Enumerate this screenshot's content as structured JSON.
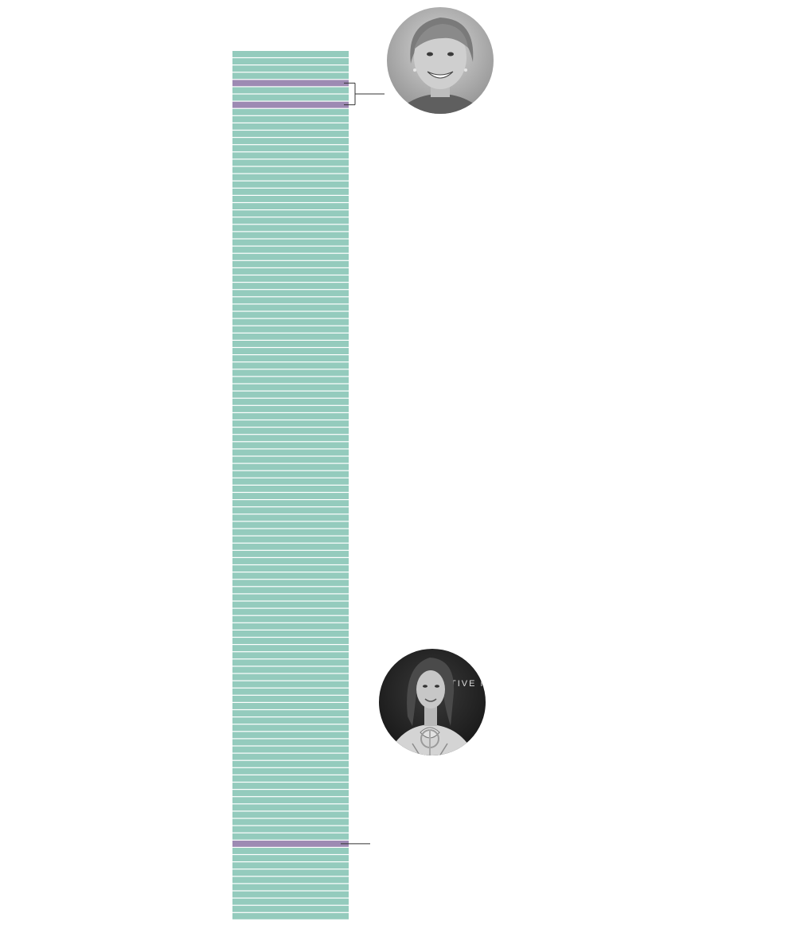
{
  "chart_data": {
    "type": "table",
    "total_rows": 120,
    "highlighted_rows": [
      4,
      7,
      109
    ],
    "colors": {
      "default": "#94cbbd",
      "highlight": "#9d8ab3",
      "separator": "#ffffff",
      "leader_line": "#333333"
    },
    "annotations": [
      {
        "rows": [
          4,
          7
        ],
        "portrait": {
          "icon": "woman-portrait-short-hair-smiling",
          "palette": "grayscale"
        }
      },
      {
        "rows": [
          109
        ],
        "portrait": {
          "icon": "woman-portrait-holding-award",
          "palette": "grayscale",
          "background_text": "TIVE M"
        }
      }
    ]
  }
}
